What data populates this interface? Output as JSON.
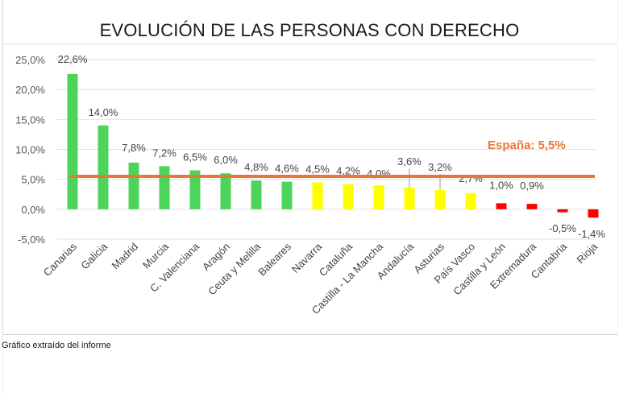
{
  "chart_data": {
    "type": "bar",
    "title": "EVOLUCIÓN DE LAS PERSONAS CON DERECHO",
    "xlabel": "",
    "ylabel": "",
    "ylim": [
      -5,
      25
    ],
    "yticks": [
      25,
      20,
      15,
      10,
      5,
      0,
      -5
    ],
    "ytick_labels": [
      "25,0%",
      "20,0%",
      "15,0%",
      "10,0%",
      "5,0%",
      "0,0%",
      "-5,0%"
    ],
    "grid": true,
    "categories": [
      "Canarias",
      "Galicia",
      "Madrid",
      "Murcia",
      "C. Valenciana",
      "Aragón",
      "Ceuta y Melilla",
      "Baleares",
      "Navarra",
      "Cataluña",
      "Castilla - La Mancha",
      "Andalucía",
      "Asturias",
      "País Vasco",
      "Castilla y León",
      "Extremadura",
      "Cantabria",
      "Rioja"
    ],
    "values": [
      22.6,
      14.0,
      7.8,
      7.2,
      6.5,
      6.0,
      4.8,
      4.6,
      4.5,
      4.2,
      4.0,
      3.6,
      3.2,
      2.7,
      1.0,
      0.9,
      -0.5,
      -1.4
    ],
    "data_labels": [
      "22,6%",
      "14,0%",
      "7,8%",
      "7,2%",
      "6,5%",
      "6,0%",
      "4,8%",
      "4,6%",
      "4,5%",
      "4,2%",
      "4,0%",
      "3,6%",
      "3,2%",
      "2,7%",
      "1,0%",
      "0,9%",
      "-0,5%",
      "-1,4%"
    ],
    "bar_colors": [
      "#4cd55a",
      "#4cd55a",
      "#4cd55a",
      "#4cd55a",
      "#4cd55a",
      "#4cd55a",
      "#4cd55a",
      "#4cd55a",
      "#ffff00",
      "#ffff00",
      "#ffff00",
      "#ffff00",
      "#ffff00",
      "#ffff00",
      "#ff0000",
      "#ff0000",
      "#ff0000",
      "#ff0000"
    ],
    "reference_line": {
      "label": "España: 5,5%",
      "value": 5.5,
      "color": "#e8773a"
    },
    "colors": {
      "above_average": "#4cd55a",
      "near_average": "#ffff00",
      "below": "#ff0000",
      "reference": "#e8773a"
    }
  },
  "caption": "Gráfico extraído del informe"
}
